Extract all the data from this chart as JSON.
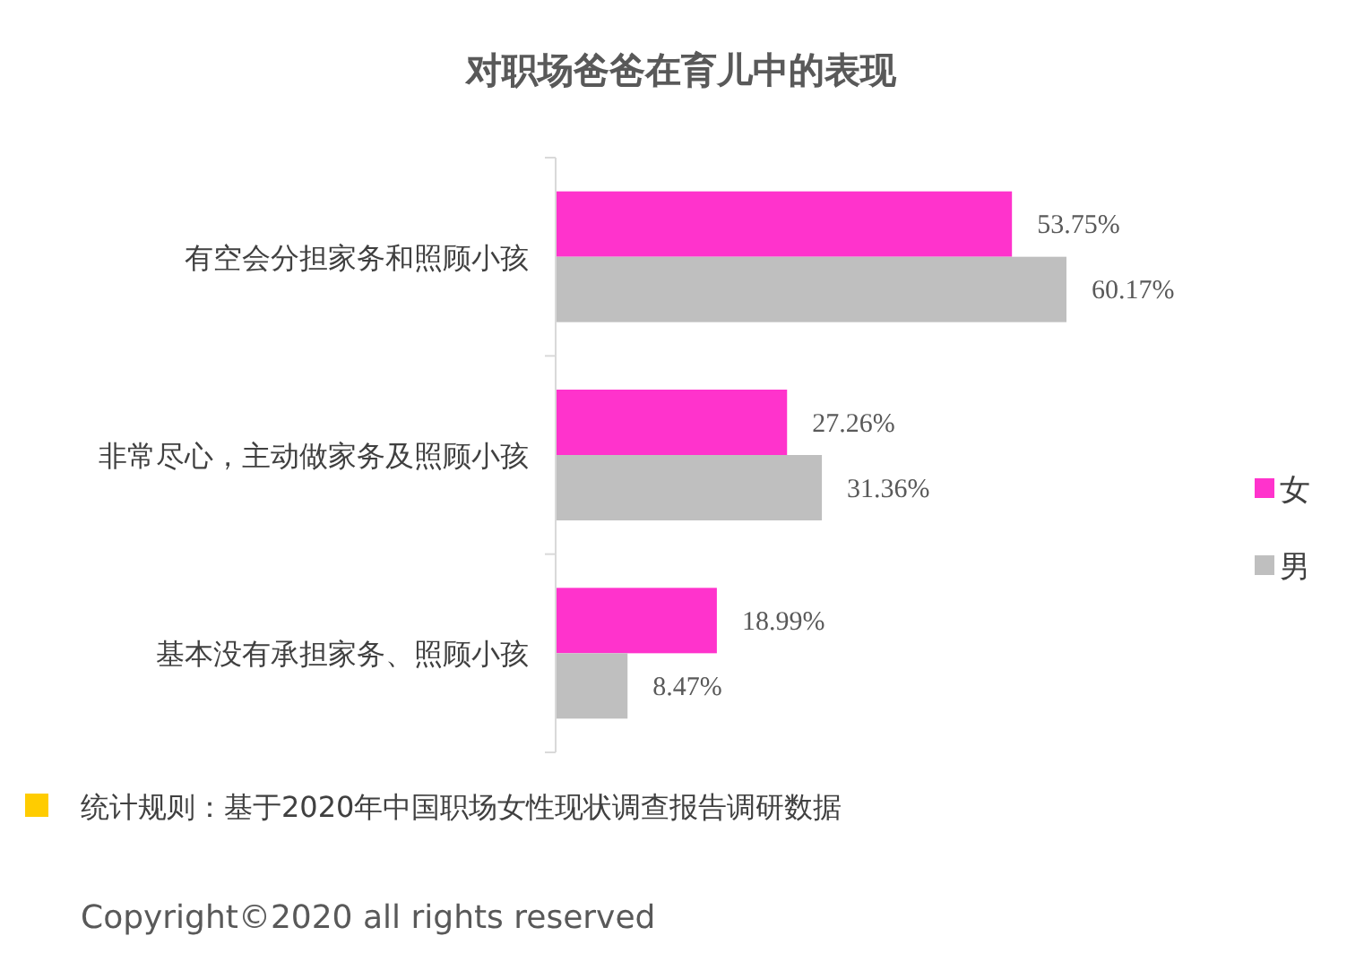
{
  "chart_data": {
    "type": "bar",
    "orientation": "horizontal",
    "title": "对职场爸爸在育儿中的表现",
    "categories": [
      "有空会分担家务和照顾小孩",
      "非常尽心，主动做家务及照顾小孩",
      "基本没有承担家务、照顾小孩"
    ],
    "series": [
      {
        "name": "女",
        "color": "#ff33cc",
        "values": [
          53.75,
          27.26,
          18.99
        ],
        "value_labels": [
          "53.75%",
          "27.26%",
          "18.99%"
        ]
      },
      {
        "name": "男",
        "color": "#bfbfbf",
        "values": [
          60.17,
          31.36,
          8.47
        ],
        "value_labels": [
          "60.17%",
          "31.36%",
          "8.47%"
        ]
      }
    ],
    "legend": "right",
    "annotations": [
      "统计规则：基于2020年中国职场女性现状调查报告调研数据",
      "Copyright©2020 all rights reserved"
    ]
  }
}
